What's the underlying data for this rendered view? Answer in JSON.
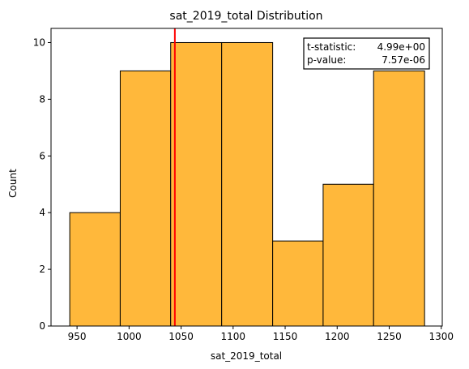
{
  "chart_data": {
    "type": "bar",
    "title": "sat_2019_total Distribution",
    "xlabel": "sat_2019_total",
    "ylabel": "Count",
    "bins": [
      {
        "start": 943,
        "end": 991.5,
        "count": 4
      },
      {
        "start": 991.5,
        "end": 1040,
        "count": 9
      },
      {
        "start": 1040,
        "end": 1089,
        "count": 10
      },
      {
        "start": 1089,
        "end": 1138,
        "count": 10
      },
      {
        "start": 1138,
        "end": 1186.5,
        "count": 3
      },
      {
        "start": 1186.5,
        "end": 1235,
        "count": 5
      },
      {
        "start": 1235,
        "end": 1284,
        "count": 9
      }
    ],
    "xlim": [
      925,
      1301
    ],
    "ylim": [
      0,
      10.5
    ],
    "xticks": [
      950,
      1000,
      1050,
      1100,
      1150,
      1200,
      1250,
      1300
    ],
    "yticks": [
      0,
      2,
      4,
      6,
      8,
      10
    ],
    "vline": {
      "value": 1044,
      "color": "#ff0000"
    },
    "bar_color": "#ffb83b",
    "bar_edge_color": "#000000",
    "grid": false,
    "annotation": {
      "t_label": "t-statistic:",
      "t_value": "4.99e+00",
      "p_label": "p-value:",
      "p_value": "7.57e-06",
      "placement": "top-right"
    }
  }
}
